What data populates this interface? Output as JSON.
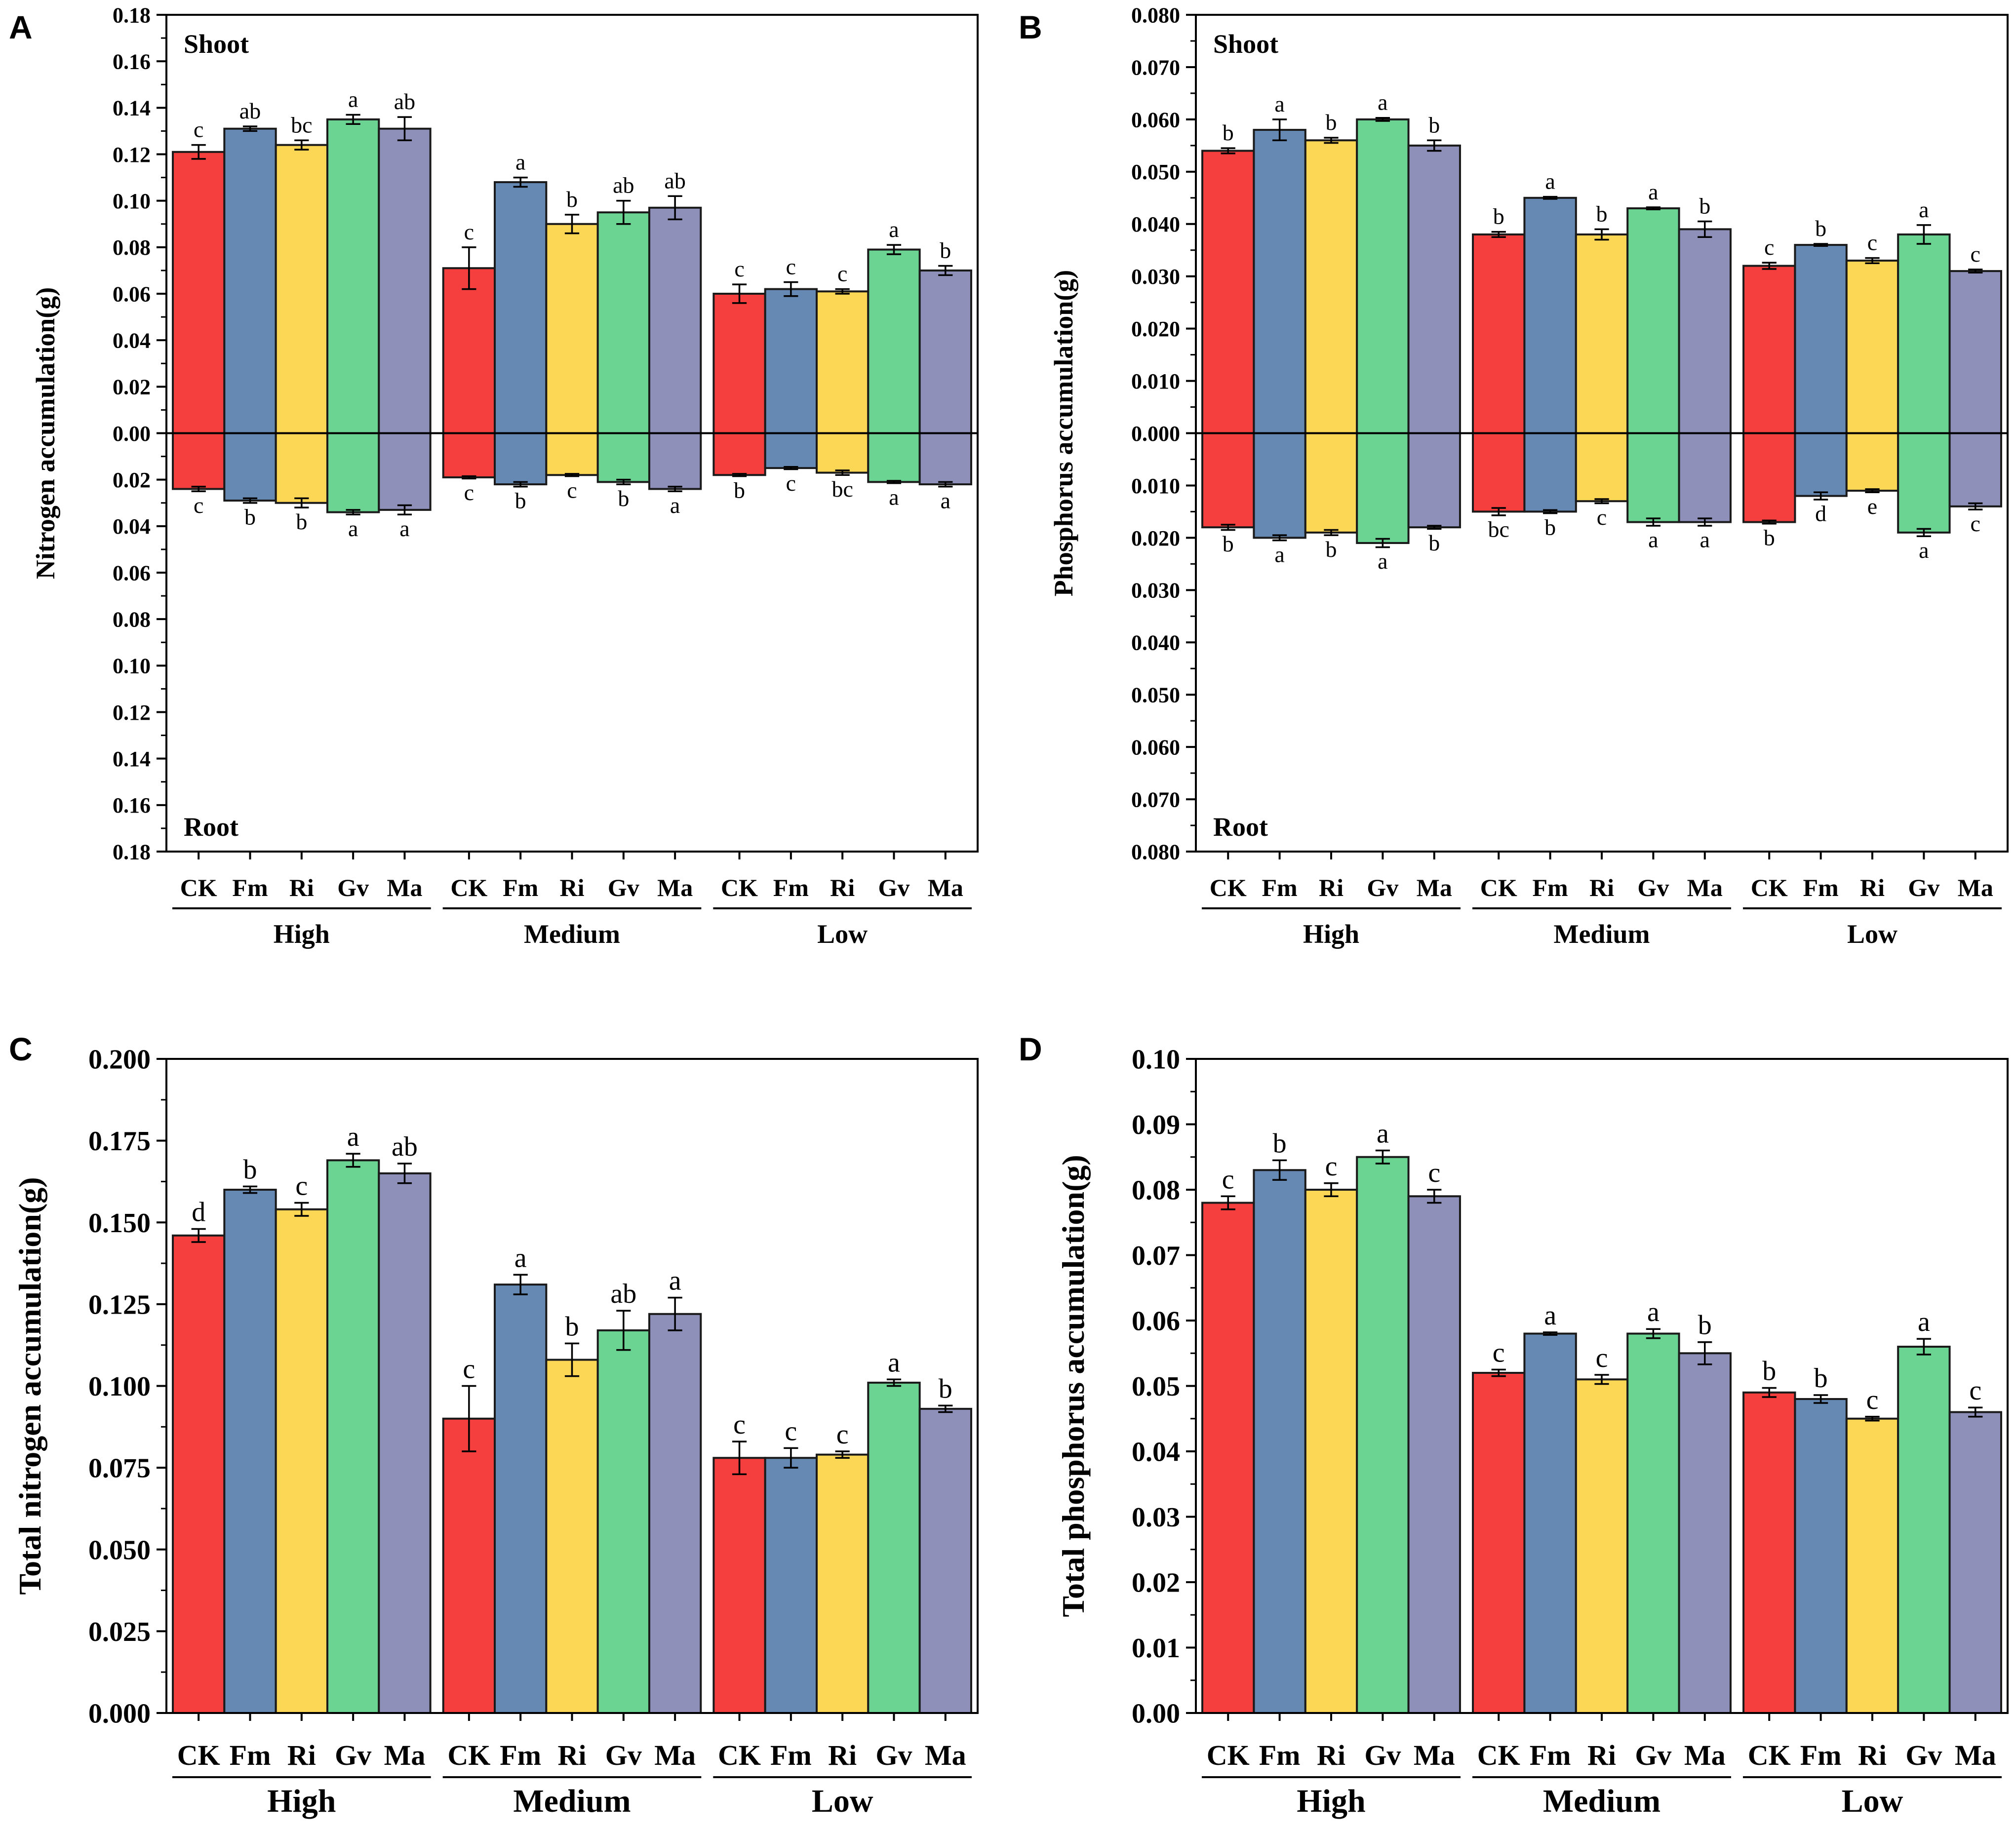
{
  "colors": {
    "CK": "#f53e3e",
    "Fm": "#6689b3",
    "Ri": "#fcd655",
    "Gv": "#6bd493",
    "Ma": "#8e90b9"
  },
  "chart_data": [
    {
      "panel": "A",
      "type": "bar",
      "title": "",
      "ylabel": "Nitrogen accumulation(g)",
      "ylim": [
        -0.18,
        0.18
      ],
      "yticks": [
        0.18,
        0.16,
        0.14,
        0.12,
        0.1,
        0.08,
        0.06,
        0.04,
        0.02,
        0.0,
        -0.02,
        -0.04,
        -0.06,
        -0.08,
        -0.1,
        -0.12,
        -0.14,
        -0.16,
        -0.18
      ],
      "ytick_labels": [
        "0.18",
        "0.16",
        "0.14",
        "0.12",
        "0.10",
        "0.08",
        "0.06",
        "0.04",
        "0.02",
        "0.00",
        "0.02",
        "0.04",
        "0.06",
        "0.08",
        "0.10",
        "0.12",
        "0.14",
        "0.16",
        "0.18"
      ],
      "groups": [
        "High",
        "Medium",
        "Low"
      ],
      "categories": [
        "CK",
        "Fm",
        "Ri",
        "Gv",
        "Ma"
      ],
      "region_labels": {
        "top": "Shoot",
        "bottom": "Root"
      },
      "series": [
        {
          "name": "Shoot",
          "values": [
            [
              0.121,
              0.131,
              0.124,
              0.135,
              0.131
            ],
            [
              0.071,
              0.108,
              0.09,
              0.095,
              0.097
            ],
            [
              0.06,
              0.062,
              0.061,
              0.079,
              0.07
            ]
          ],
          "errors": [
            [
              0.003,
              0.001,
              0.002,
              0.002,
              0.005
            ],
            [
              0.009,
              0.002,
              0.004,
              0.005,
              0.005
            ],
            [
              0.004,
              0.003,
              0.001,
              0.002,
              0.002
            ]
          ],
          "letters": [
            [
              "c",
              "ab",
              "bc",
              "a",
              "ab"
            ],
            [
              "c",
              "a",
              "b",
              "ab",
              "ab"
            ],
            [
              "c",
              "c",
              "c",
              "a",
              "b"
            ]
          ]
        },
        {
          "name": "Root",
          "values": [
            [
              -0.024,
              -0.029,
              -0.03,
              -0.034,
              -0.033
            ],
            [
              -0.019,
              -0.022,
              -0.018,
              -0.021,
              -0.024
            ],
            [
              -0.018,
              -0.015,
              -0.017,
              -0.021,
              -0.022
            ]
          ],
          "errors": [
            [
              0.001,
              0.001,
              0.002,
              0.001,
              0.002
            ],
            [
              0.0005,
              0.001,
              0.0005,
              0.001,
              0.001
            ],
            [
              0.0005,
              0.0005,
              0.001,
              0.0005,
              0.001
            ]
          ],
          "letters": [
            [
              "c",
              "b",
              "b",
              "a",
              "a"
            ],
            [
              "c",
              "b",
              "c",
              "b",
              "a"
            ],
            [
              "b",
              "c",
              "bc",
              "a",
              "a"
            ]
          ]
        }
      ]
    },
    {
      "panel": "B",
      "type": "bar",
      "title": "",
      "ylabel": "Phosphorus accumulation(g)",
      "ylim": [
        -0.08,
        0.08
      ],
      "yticks": [
        0.08,
        0.07,
        0.06,
        0.05,
        0.04,
        0.03,
        0.02,
        0.01,
        0.0,
        -0.01,
        -0.02,
        -0.03,
        -0.04,
        -0.05,
        -0.06,
        -0.07,
        -0.08
      ],
      "ytick_labels": [
        "0.080",
        "0.070",
        "0.060",
        "0.050",
        "0.040",
        "0.030",
        "0.020",
        "0.010",
        "0.000",
        "0.010",
        "0.020",
        "0.030",
        "0.040",
        "0.050",
        "0.060",
        "0.070",
        "0.080"
      ],
      "groups": [
        "High",
        "Medium",
        "Low"
      ],
      "categories": [
        "CK",
        "Fm",
        "Ri",
        "Gv",
        "Ma"
      ],
      "region_labels": {
        "top": "Shoot",
        "bottom": "Root"
      },
      "series": [
        {
          "name": "Shoot",
          "values": [
            [
              0.054,
              0.058,
              0.056,
              0.06,
              0.055
            ],
            [
              0.038,
              0.045,
              0.038,
              0.043,
              0.039
            ],
            [
              0.032,
              0.036,
              0.033,
              0.038,
              0.031
            ]
          ],
          "errors": [
            [
              0.0005,
              0.002,
              0.0005,
              0.0003,
              0.001
            ],
            [
              0.0005,
              0.0002,
              0.001,
              0.0002,
              0.0015
            ],
            [
              0.0006,
              0.0002,
              0.0005,
              0.0018,
              0.0003
            ]
          ],
          "letters": [
            [
              "b",
              "a",
              "b",
              "a",
              "b"
            ],
            [
              "b",
              "a",
              "b",
              "a",
              "b"
            ],
            [
              "c",
              "b",
              "c",
              "a",
              "c"
            ]
          ]
        },
        {
          "name": "Root",
          "values": [
            [
              -0.018,
              -0.02,
              -0.019,
              -0.021,
              -0.018
            ],
            [
              -0.015,
              -0.015,
              -0.013,
              -0.017,
              -0.017
            ],
            [
              -0.017,
              -0.012,
              -0.011,
              -0.019,
              -0.014
            ]
          ],
          "errors": [
            [
              0.0005,
              0.0005,
              0.0005,
              0.0008,
              0.0003
            ],
            [
              0.0007,
              0.0003,
              0.0004,
              0.0007,
              0.0007
            ],
            [
              0.0003,
              0.0007,
              0.0003,
              0.0007,
              0.0006
            ]
          ],
          "letters": [
            [
              "b",
              "a",
              "b",
              "a",
              "b"
            ],
            [
              "bc",
              "b",
              "c",
              "a",
              "a"
            ],
            [
              "b",
              "d",
              "e",
              "a",
              "c"
            ]
          ]
        }
      ]
    },
    {
      "panel": "C",
      "type": "bar",
      "title": "",
      "ylabel": "Total nitrogen accumulation(g)",
      "ylim": [
        0,
        0.2
      ],
      "yticks": [
        0,
        0.025,
        0.05,
        0.075,
        0.1,
        0.125,
        0.15,
        0.175,
        0.2
      ],
      "ytick_labels": [
        "0.000",
        "0.025",
        "0.050",
        "0.075",
        "0.100",
        "0.125",
        "0.150",
        "0.175",
        "0.200"
      ],
      "groups": [
        "High",
        "Medium",
        "Low"
      ],
      "categories": [
        "CK",
        "Fm",
        "Ri",
        "Gv",
        "Ma"
      ],
      "series": [
        {
          "name": "Total",
          "values": [
            [
              0.146,
              0.16,
              0.154,
              0.169,
              0.165
            ],
            [
              0.09,
              0.131,
              0.108,
              0.117,
              0.122
            ],
            [
              0.078,
              0.078,
              0.079,
              0.101,
              0.093
            ]
          ],
          "errors": [
            [
              0.002,
              0.001,
              0.002,
              0.002,
              0.003
            ],
            [
              0.01,
              0.003,
              0.005,
              0.006,
              0.005
            ],
            [
              0.005,
              0.003,
              0.001,
              0.001,
              0.001
            ]
          ],
          "letters": [
            [
              "d",
              "b",
              "c",
              "a",
              "ab"
            ],
            [
              "c",
              "a",
              "b",
              "ab",
              "a"
            ],
            [
              "c",
              "c",
              "c",
              "a",
              "b"
            ]
          ]
        }
      ]
    },
    {
      "panel": "D",
      "type": "bar",
      "title": "",
      "ylabel": "Total phosphorus accumulation(g)",
      "ylim": [
        0,
        0.1
      ],
      "yticks": [
        0,
        0.01,
        0.02,
        0.03,
        0.04,
        0.05,
        0.06,
        0.07,
        0.08,
        0.09,
        0.1
      ],
      "ytick_labels": [
        "0.00",
        "0.01",
        "0.02",
        "0.03",
        "0.04",
        "0.05",
        "0.06",
        "0.07",
        "0.08",
        "0.09",
        "0.10"
      ],
      "groups": [
        "High",
        "Medium",
        "Low"
      ],
      "categories": [
        "CK",
        "Fm",
        "Ri",
        "Gv",
        "Ma"
      ],
      "series": [
        {
          "name": "Total",
          "values": [
            [
              0.078,
              0.083,
              0.08,
              0.085,
              0.079
            ],
            [
              0.052,
              0.058,
              0.051,
              0.058,
              0.055
            ],
            [
              0.049,
              0.048,
              0.045,
              0.056,
              0.046
            ]
          ],
          "errors": [
            [
              0.001,
              0.0015,
              0.001,
              0.001,
              0.001
            ],
            [
              0.0005,
              0.0002,
              0.0007,
              0.0007,
              0.0017
            ],
            [
              0.0007,
              0.0006,
              0.0003,
              0.0012,
              0.0007
            ]
          ],
          "letters": [
            [
              "c",
              "b",
              "c",
              "a",
              "c"
            ],
            [
              "c",
              "a",
              "c",
              "a",
              "b"
            ],
            [
              "b",
              "b",
              "c",
              "a",
              "c"
            ]
          ]
        }
      ]
    }
  ]
}
